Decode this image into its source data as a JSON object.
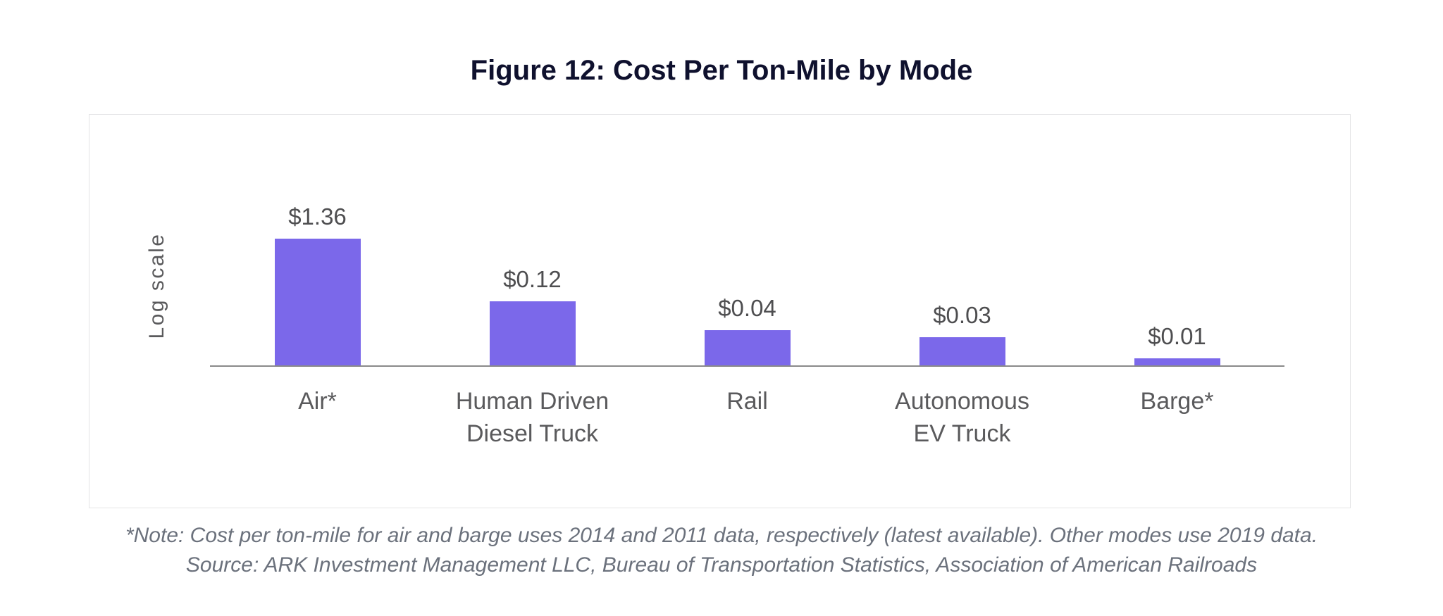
{
  "title": "Figure 12: Cost Per Ton-Mile by Mode",
  "footnote": {
    "note": "*Note: Cost per ton-mile for air and barge uses 2014 and 2011 data, respectively (latest available). Other modes use 2019 data.",
    "source": "Source: ARK Investment Management LLC, Bureau of Transportation Statistics, Association of American Railroads"
  },
  "colors": {
    "bar": "#7b68ea",
    "title_text": "#0f112e",
    "value_label_text": "#4e4e50",
    "category_text": "#5a5a5c",
    "axis_line": "#8a8a8a",
    "panel_border": "#e4e4e6",
    "footnote_text": "#6b717c"
  },
  "chart_data": {
    "type": "bar",
    "title": "Figure 12: Cost Per Ton-Mile by Mode",
    "ylabel": "Log scale",
    "xlabel": "",
    "yscale": "log",
    "baseline_value": 0.01,
    "categories": [
      "Air*",
      "Human Driven\nDiesel Truck",
      "Rail",
      "Autonomous\nEV Truck",
      "Barge*"
    ],
    "values": [
      1.36,
      0.12,
      0.04,
      0.03,
      0.01
    ],
    "value_labels": [
      "$1.36",
      "$0.12",
      "$0.04",
      "$0.03",
      "$0.01"
    ],
    "grid": false,
    "legend": false
  }
}
